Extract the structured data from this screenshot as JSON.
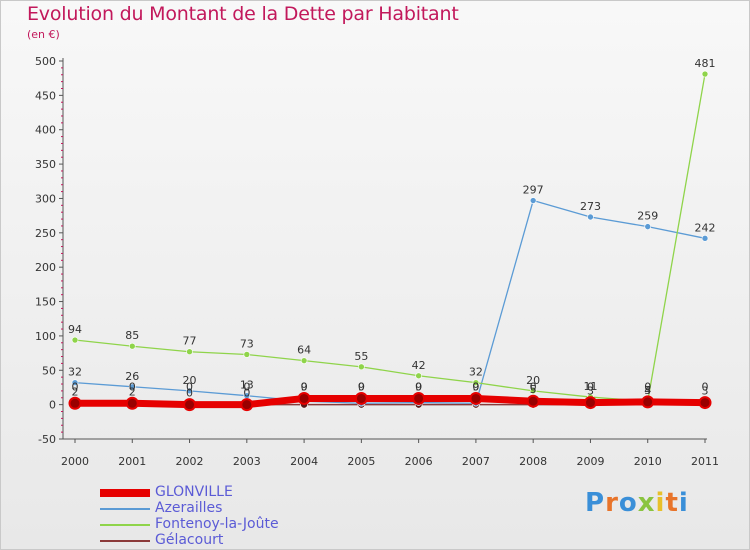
{
  "title": "Evolution du Montant de la Dette par Habitant",
  "subtitle": "(en €)",
  "chart_data": {
    "type": "line",
    "title": "Evolution du Montant de la Dette par Habitant",
    "subtitle": "(en €)",
    "xlabel": "",
    "ylabel": "",
    "x": [
      "2000",
      "2001",
      "2002",
      "2003",
      "2004",
      "2005",
      "2006",
      "2007",
      "2008",
      "2009",
      "2010",
      "2011"
    ],
    "ylim": [
      -50,
      500
    ],
    "yticks": [
      -50,
      0,
      50,
      100,
      150,
      200,
      250,
      300,
      350,
      400,
      450,
      500
    ],
    "grid": false,
    "legend_position": "bottom-left",
    "series": [
      {
        "name": "GLONVILLE",
        "color": "#e60000",
        "values": [
          2,
          2,
          0,
          0,
          9,
          9,
          9,
          9,
          5,
          3,
          4,
          3
        ],
        "labels": [
          "2",
          "2",
          "0",
          "0",
          "9",
          "9",
          "9",
          "9",
          "5",
          "3",
          "4",
          "3"
        ]
      },
      {
        "name": "Azerailles",
        "color": "#5b9bd5",
        "values": [
          32,
          26,
          20,
          13,
          5,
          2,
          3,
          2,
          297,
          273,
          259,
          242
        ],
        "labels": [
          "32",
          "26",
          "20",
          "13",
          "",
          "",
          "",
          "",
          "297",
          "273",
          "259",
          "242"
        ]
      },
      {
        "name": "Fontenoy-la-Joûte",
        "color": "#8fd44a",
        "values": [
          94,
          85,
          77,
          73,
          64,
          55,
          42,
          32,
          20,
          11,
          5,
          481
        ],
        "labels": [
          "94",
          "85",
          "77",
          "73",
          "64",
          "55",
          "42",
          "32",
          "20",
          "11",
          "5",
          "481"
        ]
      },
      {
        "name": "Gélacourt",
        "color": "#8b3a3a",
        "values": [
          0,
          0,
          0,
          0,
          0,
          0,
          0,
          0,
          0,
          0,
          0,
          0
        ],
        "labels": [
          "0",
          "0",
          "0",
          "0",
          "0",
          "0",
          "0",
          "0",
          "0",
          "0",
          "0",
          "0"
        ]
      }
    ]
  },
  "logo": {
    "text": "Proxiti",
    "letters": [
      "P",
      "r",
      "o",
      "x",
      "i",
      "t",
      "i"
    ],
    "colors": [
      "#3a8fd8",
      "#e8742a",
      "#3a8fd8",
      "#8ac43f",
      "#e8c02a",
      "#e8742a",
      "#3a8fd8"
    ]
  }
}
